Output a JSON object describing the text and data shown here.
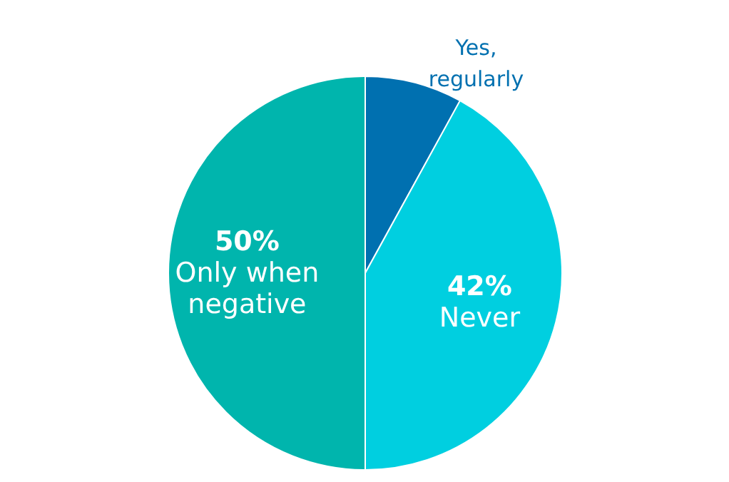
{
  "chart_data": {
    "type": "pie",
    "categories": [
      "Yes, regularly",
      "Never",
      "Only when negative"
    ],
    "values": [
      8,
      42,
      50
    ],
    "colors": [
      "#0070b0",
      "#00cfe0",
      "#00b5ad"
    ],
    "value_labels": [
      null,
      "42%",
      "50%"
    ]
  }
}
